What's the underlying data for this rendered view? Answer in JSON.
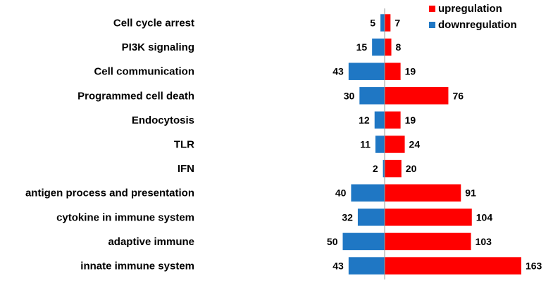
{
  "chart_data": {
    "type": "bar",
    "orientation": "horizontal-diverging",
    "categories": [
      "Cell cycle arrest",
      "PI3K signaling",
      "Cell communication",
      "Programmed cell death",
      "Endocytosis",
      "TLR",
      "IFN",
      "antigen process and presentation",
      "cytokine in immune system",
      "adaptive immune",
      "innate immune system"
    ],
    "series": [
      {
        "name": "upregulation",
        "color": "#ff0000",
        "direction": "right",
        "values": [
          7,
          8,
          19,
          76,
          19,
          24,
          20,
          91,
          104,
          103,
          163
        ]
      },
      {
        "name": "downregulation",
        "color": "#1f77c4",
        "direction": "left",
        "values": [
          5,
          15,
          43,
          30,
          12,
          11,
          2,
          40,
          32,
          50,
          43
        ]
      }
    ],
    "legend_position": "top-right",
    "title": "",
    "xlabel": "",
    "ylabel": ""
  }
}
